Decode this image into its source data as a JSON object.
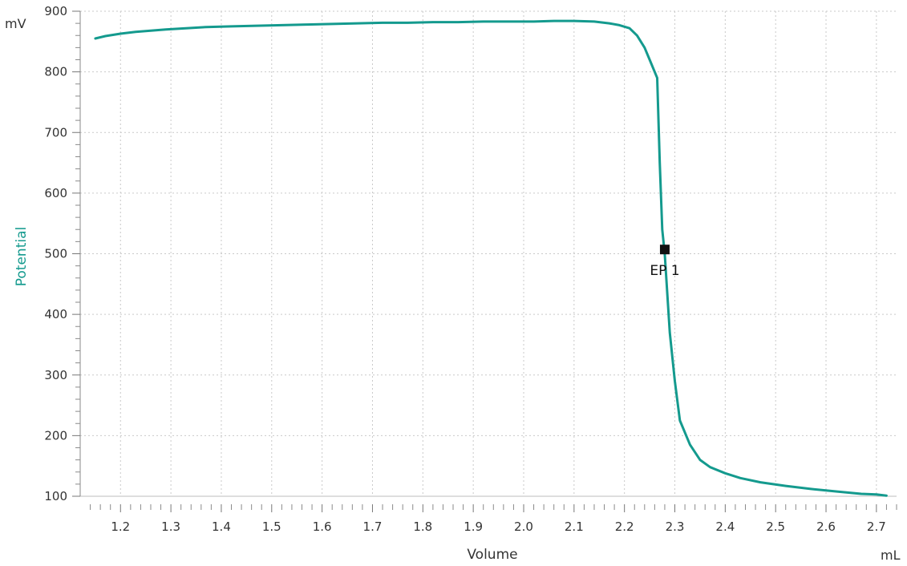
{
  "chart_data": {
    "type": "line",
    "title": "",
    "xlabel": "Volume",
    "ylabel": "Potential",
    "x_unit": "mL",
    "y_unit": "mV",
    "xlim": [
      1.12,
      2.74
    ],
    "ylim": [
      100,
      900
    ],
    "x_ticks": [
      1.2,
      1.3,
      1.4,
      1.5,
      1.6,
      1.7,
      1.8,
      1.9,
      2.0,
      2.1,
      2.2,
      2.3,
      2.4,
      2.5,
      2.6,
      2.7
    ],
    "y_ticks": [
      100,
      200,
      300,
      400,
      500,
      600,
      700,
      800,
      900
    ],
    "grid": true,
    "series": [
      {
        "name": "",
        "color": "#149a8e",
        "x": [
          1.15,
          1.17,
          1.2,
          1.23,
          1.26,
          1.29,
          1.33,
          1.37,
          1.42,
          1.47,
          1.52,
          1.57,
          1.62,
          1.67,
          1.72,
          1.77,
          1.82,
          1.87,
          1.92,
          1.97,
          2.02,
          2.06,
          2.1,
          2.14,
          2.17,
          2.19,
          2.21,
          2.225,
          2.24,
          2.25,
          2.265,
          2.27,
          2.275,
          2.28,
          2.29,
          2.3,
          2.31,
          2.33,
          2.35,
          2.37,
          2.4,
          2.43,
          2.47,
          2.52,
          2.57,
          2.62,
          2.67,
          2.7,
          2.72
        ],
        "y": [
          855,
          859,
          863,
          866,
          868,
          870,
          872,
          874,
          875,
          876,
          877,
          878,
          879,
          880,
          881,
          881,
          882,
          882,
          883,
          883,
          883,
          884,
          884,
          883,
          880,
          877,
          872,
          860,
          840,
          820,
          790,
          650,
          540,
          500,
          370,
          290,
          225,
          185,
          160,
          148,
          138,
          130,
          123,
          117,
          112,
          108,
          104,
          103,
          101
        ]
      }
    ],
    "annotations": [
      {
        "label": "EP 1",
        "x": 2.28,
        "y": 507,
        "marker": "square",
        "color": "#111111"
      }
    ]
  }
}
